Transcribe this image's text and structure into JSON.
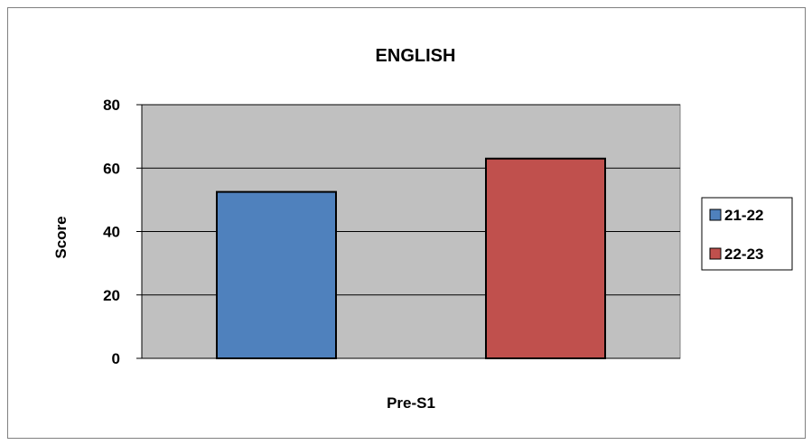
{
  "chart_data": {
    "type": "bar",
    "title": "ENGLISH",
    "categories": [
      "Pre-S1"
    ],
    "xlabel": "Pre-S1",
    "ylabel": "Score",
    "ylim": [
      0,
      80
    ],
    "yticks": [
      0,
      20,
      40,
      60,
      80
    ],
    "grid": true,
    "legend_position": "right",
    "plot_background": "#C0C0C0",
    "series": [
      {
        "name": "21-22",
        "values": [
          52.5
        ],
        "color": "#4F81BD"
      },
      {
        "name": "22-23",
        "values": [
          63
        ],
        "color": "#C0504D"
      }
    ]
  }
}
